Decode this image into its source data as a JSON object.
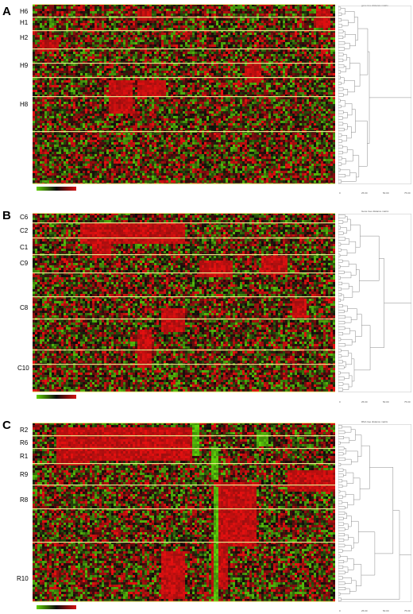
{
  "colors": {
    "high": "#d61010",
    "mid": "#0d0d0d",
    "low": "#5fd000",
    "separator": "#e9e48a"
  },
  "panels": [
    {
      "label": "A",
      "clusters": [
        "H6",
        "H1",
        "H2",
        "H9",
        "H8"
      ],
      "dendro_title": "gene tree distance matrix",
      "ticks": [
        "0",
        "25.00",
        "50.00",
        "75.00"
      ]
    },
    {
      "label": "B",
      "clusters": [
        "C6",
        "C2",
        "C1",
        "C9",
        "C8",
        "C10"
      ],
      "dendro_title": "Gene tree distance matrix",
      "ticks": [
        "0",
        "25.00",
        "50.00",
        "75.00"
      ]
    },
    {
      "label": "C",
      "clusters": [
        "R2",
        "R6",
        "R1",
        "R9",
        "R8",
        "R10"
      ],
      "dendro_title": "RNA tree distance matrix",
      "ticks": [
        "0",
        "25.00",
        "50.00",
        "75.00"
      ]
    }
  ]
}
